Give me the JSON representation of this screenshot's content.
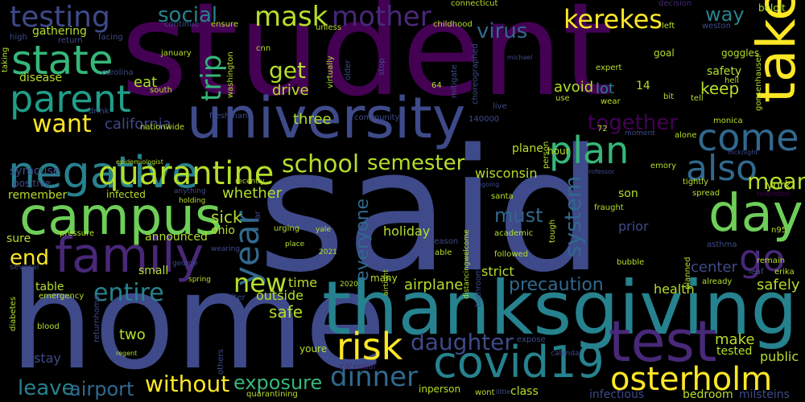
{
  "words": {
    "student": "student",
    "said": "said",
    "home": "home",
    "thanksgiving": "thanksgiving",
    "university": "university",
    "campus": "campus",
    "family": "family",
    "take": "take",
    "day": "day",
    "test": "test",
    "covid19": "covid19",
    "negative": "negative",
    "state": "state",
    "parent": "parent",
    "quarantine": "quarantine",
    "plan": "plan",
    "come": "come",
    "also": "also",
    "risk": "risk",
    "osterholm": "osterholm",
    "year": "year",
    "testing": "testing",
    "mother": "mother",
    "mask": "mask",
    "social": "social",
    "kerekes": "kerekes",
    "way": "way",
    "virus": "virus",
    "trip": "trip",
    "get": "get",
    "want": "want",
    "new": "new",
    "go": "go",
    "end": "end",
    "dinner": "dinner",
    "without": "without",
    "exposure": "exposure",
    "leave": "leave",
    "daughter": "daughter",
    "entire": "entire",
    "mean": "mean",
    "everyone": "everyone",
    "must": "must",
    "system": "system",
    "school": "school",
    "semester": "semester",
    "together": "together",
    "keep": "keep",
    "airport": "airport",
    "safe": "safe",
    "sick": "sick",
    "whether": "whether",
    "avoid": "avoid",
    "lot": "lot",
    "california": "california",
    "eat": "eat",
    "drive": "drive",
    "three": "three",
    "wisconsin": "wisconsin",
    "holiday": "holiday",
    "precaution": "precaution",
    "airplane": "airplane",
    "make": "make",
    "two": "two",
    "stay": "stay",
    "safely": "safely",
    "health": "health",
    "center": "center",
    "prior": "prior",
    "strict": "strict",
    "outside": "outside",
    "time": "time",
    "public": "public",
    "tested": "tested",
    "infectious": "infectious",
    "bedroom": "bedroom",
    "milsteins": "milsteins",
    "class": "class",
    "inperson": "inperson",
    "announced": "announced",
    "ohio": "ohio",
    "small": "small",
    "table": "table",
    "remember": "remember",
    "infected": "infected",
    "syracuse": "syracuse",
    "positive": "positive",
    "sure": "sure",
    "disease": "disease",
    "gathering": "gathering",
    "safety": "safety",
    "york": "york",
    "son": "son",
    "plane": "plane",
    "hour": "hour",
    "youre": "youre",
    "many": "many",
    "emergency": "emergency",
    "pressure": "pressure",
    "goal": "goal",
    "step": "step",
    "14": "14",
    "bit": "bit",
    "tell": "tell",
    "hell": "hell",
    "goggles": "goggles",
    "beloit": "beloit",
    "weston": "weston",
    "left": "left",
    "decision": "decision",
    "connecticut": "connecticut",
    "childhood": "childhood",
    "unless": "unless",
    "ensure": "ensure",
    "continue": "continue",
    "facing": "facing",
    "return": "return",
    "high": "high",
    "taking": "taking",
    "january": "january",
    "washington": "washington",
    "cnn": "cnn",
    "carolina": "carolina",
    "south": "south",
    "drink": "drink",
    "nationwide": "nationwide",
    "freshman": "freshman",
    "community": "community",
    "140000": "140000",
    "live": "live",
    "use": "use",
    "wear": "wear",
    "expert": "expert",
    "michael": "michael",
    "64": "64",
    "stop": "stop",
    "virtually": "virtually",
    "older": "older",
    "mitigate": "mitigate",
    "choreographed": "choreographed",
    "moment": "moment",
    "72": "72",
    "monica": "monica",
    "alone": "alone",
    "gonsenhauser": "gonsenhauser",
    "mcknight": "mcknight",
    "rewritten": "rewritten",
    "emory": "emory",
    "professor": "professor",
    "tightly": "tightly",
    "spread": "spread",
    "person": "person",
    "ongoing": "ongoing",
    "santa": "santa",
    "fraught": "fraught",
    "academic": "academic",
    "tough": "tough",
    "followed": "followed",
    "season": "season",
    "able": "able",
    "planned": "planned",
    "bubble": "bubble",
    "asthma": "asthma",
    "n95": "n95",
    "remain": "remain",
    "erika": "erika",
    "leaf": "leaf",
    "already": "already",
    "epidemiologist": "epidemiologist",
    "recently": "recently",
    "anything": "anything",
    "holding": "holding",
    "urging": "urging",
    "far": "far",
    "yale": "yale",
    "place": "place",
    "george": "george",
    "spring": "spring",
    "wearing": "wearing",
    "shelter": "shelter",
    "2021": "2021",
    "2020": "2020",
    "airtight": "airtight",
    "distancingwelcome": "distancingwelcome",
    "bathroom": "bathroom",
    "potential": "potential",
    "wont": "wont",
    "little": "little",
    "expose": "expose",
    "calendar": "calendar",
    "several": "several",
    "diabetes": "diabetes",
    "blood": "blood",
    "returnhome": "returnhome",
    "regent": "regent",
    "others": "others",
    "quarantining": "quarantining"
  },
  "colors": {
    "dark_purple": "#440154",
    "purple": "#482878",
    "indigo": "#3e4a89",
    "blue": "#31688e",
    "teal": "#26828e",
    "cyan": "#1f9e89",
    "green": "#35b779",
    "lime": "#6ece58",
    "yellow_green": "#b5de2b",
    "yellow": "#fde725"
  }
}
